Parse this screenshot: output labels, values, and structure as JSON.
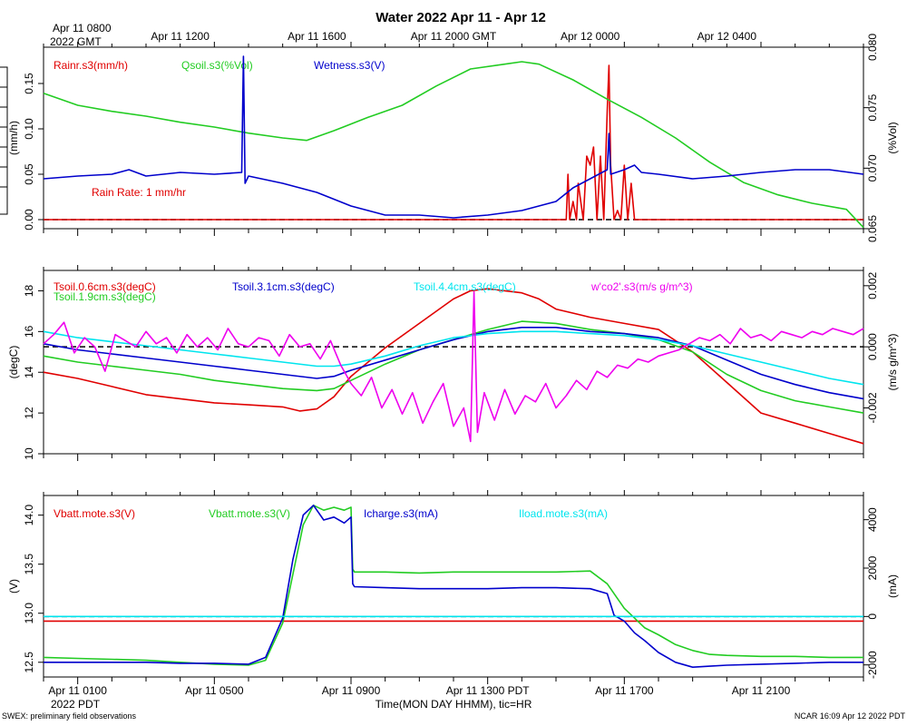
{
  "title": "Water 2022 Apr 11 - Apr 12",
  "top_time_labels": {
    "start_line1": "Apr 11 0800",
    "start_line2": "2022 GMT",
    "ticks": [
      "Apr 11 1200",
      "Apr 11 1600",
      "Apr 11 2000 GMT",
      "Apr 12 0000",
      "Apr 12 0400"
    ]
  },
  "bottom_time_labels": {
    "ticks": [
      "Apr 11 0100",
      "Apr 11 0500",
      "Apr 11 0900",
      "Apr 11 1300 PDT",
      "Apr 11 1700",
      "Apr 11 2100"
    ],
    "year": "2022 PDT",
    "axis_title": "Time(MON DAY HHMM), tic=HR"
  },
  "footer": {
    "left": "SWEX: preliminary field observations",
    "right": "NCAR 16:09 Apr 12 2022 PDT"
  },
  "colors": {
    "red": "#e00000",
    "green": "#22cc22",
    "blue": "#0000cc",
    "cyan": "#00e5ee",
    "magenta": "#ee00ee",
    "black": "#000000"
  },
  "chart_data": [
    {
      "type": "line",
      "title": "Water",
      "x_hours_pdt_range": [
        0,
        24
      ],
      "left_axis": {
        "label": "(mm/h)",
        "range": [
          -0.01,
          0.19
        ],
        "ticks": [
          "0.00",
          "0.05",
          "0.10",
          "0.15"
        ]
      },
      "right_axis": {
        "label": "(%Vol)",
        "range": [
          0.065,
          0.08
        ],
        "ticks": [
          "0.065",
          "0.070",
          "0.075",
          "0.080"
        ]
      },
      "annotation": "Rain Rate: 1 mm/hr",
      "series": [
        {
          "name": "Rainr.s3(mm/h)",
          "color": "red",
          "axis": "left",
          "x": [
            0,
            15.3,
            15.35,
            15.4,
            15.5,
            15.6,
            15.65,
            15.8,
            15.9,
            16.0,
            16.1,
            16.2,
            16.3,
            16.4,
            16.5,
            16.55,
            16.6,
            16.7,
            16.8,
            16.9,
            17.0,
            17.1,
            17.2,
            17.3,
            17.4,
            24
          ],
          "y": [
            0,
            0,
            0.05,
            0.0,
            0.02,
            0.0,
            0.04,
            0.0,
            0.07,
            0.06,
            0.08,
            0.0,
            0.07,
            0.0,
            0.12,
            0.17,
            0.06,
            0.0,
            0.01,
            0.0,
            0.06,
            0.0,
            0.04,
            0.0,
            0.0,
            0
          ]
        },
        {
          "name": "Qsoil.s3(%Vol)",
          "color": "green",
          "axis": "right",
          "x": [
            0,
            1,
            2,
            3,
            4,
            5,
            6,
            7,
            7.7,
            8.5,
            9.5,
            10.5,
            11.5,
            12.5,
            13.5,
            14.0,
            14.5,
            15.5,
            16.5,
            17.5,
            18.5,
            19.5,
            20.5,
            21.5,
            22.5,
            23.5,
            24
          ],
          "y": [
            0.0762,
            0.0752,
            0.0747,
            0.0743,
            0.0738,
            0.0734,
            0.0729,
            0.0725,
            0.0723,
            0.0731,
            0.0742,
            0.0752,
            0.0768,
            0.0782,
            0.0786,
            0.0788,
            0.0786,
            0.0773,
            0.0757,
            0.0742,
            0.0725,
            0.0705,
            0.0688,
            0.0678,
            0.0671,
            0.0666,
            0.0651
          ]
        },
        {
          "name": "Wetness.s3(V)",
          "color": "blue",
          "axis": "left",
          "x": [
            0,
            1,
            2,
            2.5,
            3,
            4,
            5.0,
            5.8,
            5.85,
            5.9,
            6.0,
            7.0,
            8.0,
            9.0,
            10.0,
            11.0,
            12.0,
            13.0,
            14.0,
            15.0,
            15.5,
            16.0,
            16.5,
            16.55,
            16.6,
            17.0,
            17.3,
            17.5,
            18,
            19,
            20,
            21,
            22,
            23,
            24
          ],
          "y": [
            0.045,
            0.048,
            0.05,
            0.055,
            0.048,
            0.052,
            0.05,
            0.052,
            0.18,
            0.04,
            0.048,
            0.04,
            0.03,
            0.015,
            0.005,
            0.005,
            0.002,
            0.005,
            0.01,
            0.02,
            0.035,
            0.045,
            0.055,
            0.095,
            0.05,
            0.055,
            0.06,
            0.052,
            0.05,
            0.045,
            0.048,
            0.052,
            0.055,
            0.055,
            0.05
          ]
        }
      ],
      "reference_line_left": 0.0
    },
    {
      "type": "line",
      "title": "Soil temperature and CO2 flux",
      "x_hours_pdt_range": [
        0,
        24
      ],
      "left_axis": {
        "label": "(degC)",
        "range": [
          10,
          19
        ],
        "ticks": [
          "10",
          "12",
          "14",
          "16",
          "18"
        ]
      },
      "right_axis": {
        "label": "(m/s g/m^3)",
        "range": [
          -0.0035,
          0.0025
        ],
        "ticks": [
          "-0.002",
          "0.000",
          "0.002"
        ]
      },
      "series": [
        {
          "name": "Tsoil.0.6cm.s3(degC)",
          "color": "red",
          "axis": "left",
          "x": [
            0,
            1,
            2,
            3,
            4,
            5,
            6,
            7,
            7.5,
            8,
            8.5,
            9,
            10,
            11,
            12,
            12.5,
            13,
            13.5,
            14,
            14.5,
            15,
            16,
            17,
            18,
            19,
            20,
            21,
            22,
            23,
            24
          ],
          "y": [
            14.0,
            13.7,
            13.3,
            12.9,
            12.7,
            12.5,
            12.4,
            12.3,
            12.1,
            12.2,
            12.8,
            13.8,
            15.2,
            16.4,
            17.6,
            18.0,
            18.1,
            18.0,
            17.9,
            17.6,
            17.1,
            16.7,
            16.4,
            16.1,
            15.0,
            13.5,
            12.0,
            11.5,
            11.0,
            10.5
          ]
        },
        {
          "name": "Tsoil.1.9cm.s3(degC)",
          "color": "green",
          "axis": "left",
          "x": [
            0,
            1,
            2,
            3,
            4,
            5,
            6,
            7,
            8,
            8.5,
            9,
            10,
            11,
            12,
            13,
            14,
            15,
            16,
            17,
            18,
            19,
            20,
            21,
            22,
            23,
            24
          ],
          "y": [
            14.8,
            14.5,
            14.3,
            14.1,
            13.9,
            13.6,
            13.4,
            13.2,
            13.1,
            13.2,
            13.6,
            14.4,
            15.1,
            15.6,
            16.1,
            16.5,
            16.4,
            16.1,
            15.9,
            15.6,
            15.0,
            13.9,
            13.1,
            12.6,
            12.3,
            12.0
          ]
        },
        {
          "name": "Tsoil.3.1cm.s3(degC)",
          "color": "blue",
          "axis": "left",
          "x": [
            0,
            1,
            2,
            3,
            4,
            5,
            6,
            7,
            8,
            8.5,
            9,
            10,
            11,
            12,
            13,
            14,
            15,
            16,
            17,
            18,
            19,
            20,
            21,
            22,
            23,
            24
          ],
          "y": [
            15.4,
            15.1,
            14.9,
            14.7,
            14.5,
            14.3,
            14.1,
            13.9,
            13.7,
            13.8,
            14.1,
            14.6,
            15.1,
            15.6,
            16.0,
            16.2,
            16.2,
            16.0,
            15.9,
            15.7,
            15.3,
            14.6,
            13.9,
            13.4,
            13.0,
            12.7
          ]
        },
        {
          "name": "Tsoil.4.4cm.s3(degC)",
          "color": "cyan",
          "axis": "left",
          "x": [
            0,
            1,
            2,
            3,
            4,
            5,
            6,
            7,
            8,
            8.5,
            9,
            10,
            11,
            12,
            13,
            14,
            15,
            16,
            17,
            18,
            19,
            20,
            21,
            22,
            23,
            24
          ],
          "y": [
            16.0,
            15.7,
            15.5,
            15.3,
            15.1,
            14.9,
            14.7,
            14.5,
            14.3,
            14.3,
            14.4,
            14.8,
            15.3,
            15.7,
            15.9,
            16.0,
            16.0,
            15.9,
            15.8,
            15.6,
            15.3,
            14.9,
            14.5,
            14.1,
            13.7,
            13.4
          ]
        },
        {
          "name": "w'co2'.s3(m/s g/m^3)",
          "color": "magenta",
          "axis": "right",
          "x": [
            0,
            0.3,
            0.6,
            0.9,
            1.2,
            1.5,
            1.8,
            2.1,
            2.4,
            2.7,
            3.0,
            3.3,
            3.6,
            3.9,
            4.2,
            4.5,
            4.8,
            5.1,
            5.4,
            5.7,
            6.0,
            6.3,
            6.6,
            6.9,
            7.2,
            7.5,
            7.8,
            8.1,
            8.4,
            8.7,
            9.0,
            9.3,
            9.6,
            9.9,
            10.2,
            10.5,
            10.8,
            11.1,
            11.4,
            11.7,
            12.0,
            12.3,
            12.5,
            12.6,
            12.7,
            12.9,
            13.2,
            13.5,
            13.8,
            14.1,
            14.4,
            14.7,
            15.0,
            15.3,
            15.6,
            15.9,
            16.2,
            16.5,
            16.8,
            17.1,
            17.4,
            17.7,
            18.0,
            18.3,
            18.6,
            18.9,
            19.2,
            19.5,
            19.8,
            20.1,
            20.4,
            20.7,
            21.0,
            21.3,
            21.6,
            21.9,
            22.2,
            22.5,
            22.8,
            23.1,
            23.4,
            23.7,
            24
          ],
          "y": [
            0.0001,
            0.0004,
            0.0008,
            -0.0002,
            0.0003,
            0.0,
            -0.0008,
            0.0004,
            0.0002,
            0.0,
            0.0005,
            0.0001,
            0.0003,
            -0.0002,
            0.0004,
            0.0,
            0.0003,
            -0.0001,
            0.0006,
            0.0001,
            0.0,
            0.0003,
            0.0002,
            -0.0003,
            0.0004,
            0.0,
            0.0001,
            -0.0004,
            0.0002,
            -0.0006,
            -0.0012,
            -0.0016,
            -0.001,
            -0.002,
            -0.0014,
            -0.0022,
            -0.0015,
            -0.0025,
            -0.0018,
            -0.0012,
            -0.0026,
            -0.002,
            -0.0031,
            0.0018,
            -0.0028,
            -0.0015,
            -0.0024,
            -0.0014,
            -0.0022,
            -0.0016,
            -0.0018,
            -0.0012,
            -0.002,
            -0.0016,
            -0.0011,
            -0.0014,
            -0.0008,
            -0.001,
            -0.0006,
            -0.0007,
            -0.0004,
            -0.0005,
            -0.0003,
            -0.0002,
            -0.0001,
            0.0001,
            0.0003,
            0.0002,
            0.0004,
            0.0001,
            0.0006,
            0.0003,
            0.0004,
            0.0002,
            0.0005,
            0.0004,
            0.0003,
            0.0005,
            0.0004,
            0.0006,
            0.0005,
            0.0004,
            0.0006
          ]
        }
      ],
      "reference_line_right": 0.0
    },
    {
      "type": "line",
      "title": "Battery and charge",
      "x_hours_pdt_range": [
        0,
        24
      ],
      "left_axis": {
        "label": "(V)",
        "range": [
          12.35,
          14.2
        ],
        "ticks": [
          "12.5",
          "13.0",
          "13.5",
          "14.0"
        ]
      },
      "right_axis": {
        "label": "(mA)",
        "range": [
          -2500,
          5000
        ],
        "ticks": [
          "-2000",
          "0",
          "2000",
          "4000"
        ]
      },
      "series": [
        {
          "name": "Vbatt.mote.s3(V)",
          "color": "red",
          "axis": "left",
          "x": [
            0,
            24
          ],
          "y": [
            12.92,
            12.92
          ]
        },
        {
          "name": "Vbatt.mote.s3(V)",
          "color": "green",
          "axis": "left",
          "x": [
            0,
            1,
            2,
            3,
            4,
            5,
            6,
            6.5,
            7.0,
            7.3,
            7.6,
            7.9,
            8.2,
            8.5,
            8.8,
            9.0,
            9.05,
            9.1,
            10,
            11,
            12,
            13,
            14,
            15,
            16,
            16.5,
            17.0,
            17.3,
            17.6,
            18.0,
            18.5,
            19.0,
            19.5,
            20,
            21,
            22,
            23,
            24
          ],
          "y": [
            12.55,
            12.54,
            12.53,
            12.52,
            12.5,
            12.48,
            12.47,
            12.52,
            12.9,
            13.4,
            13.9,
            14.1,
            14.05,
            14.08,
            14.05,
            14.08,
            13.45,
            13.42,
            13.42,
            13.41,
            13.42,
            13.42,
            13.42,
            13.42,
            13.43,
            13.3,
            13.05,
            12.95,
            12.85,
            12.78,
            12.68,
            12.62,
            12.58,
            12.57,
            12.56,
            12.56,
            12.55,
            12.55
          ]
        },
        {
          "name": "Icharge.s3(mA)",
          "color": "blue",
          "axis": "left",
          "x": [
            0,
            1,
            2,
            3,
            4,
            5,
            6,
            6.5,
            7.0,
            7.3,
            7.6,
            7.9,
            8.2,
            8.5,
            8.8,
            9.0,
            9.05,
            9.1,
            10,
            11,
            12,
            13,
            14,
            15,
            16,
            16.5,
            16.7,
            17.0,
            17.3,
            17.6,
            18.0,
            18.5,
            19.0,
            19.5,
            20,
            21,
            22,
            23,
            24
          ],
          "y": [
            12.5,
            12.5,
            12.5,
            12.5,
            12.49,
            12.49,
            12.48,
            12.55,
            12.95,
            13.55,
            14.0,
            14.1,
            13.95,
            13.98,
            13.92,
            13.98,
            13.3,
            13.27,
            13.26,
            13.25,
            13.25,
            13.25,
            13.26,
            13.26,
            13.25,
            13.2,
            12.98,
            12.92,
            12.8,
            12.72,
            12.6,
            12.5,
            12.45,
            12.46,
            12.47,
            12.48,
            12.49,
            12.5,
            12.5
          ]
        },
        {
          "name": "Iload.mote.s3(mA)",
          "color": "cyan",
          "axis": "right",
          "x": [
            0,
            24
          ],
          "y": [
            0,
            0
          ]
        }
      ],
      "reference_line_right": 0
    }
  ]
}
